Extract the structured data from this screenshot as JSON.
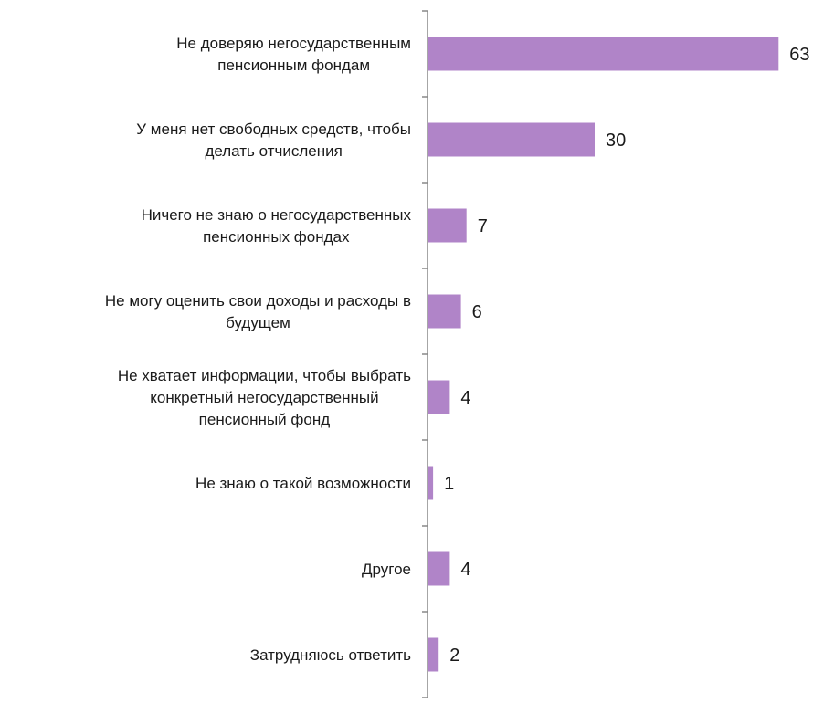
{
  "chart_data": {
    "type": "bar",
    "orientation": "horizontal",
    "categories": [
      [
        "Не доверяю негосударственным",
        "пенсионным фондам"
      ],
      [
        "У меня нет свободных средств, чтобы",
        "делать отчисления"
      ],
      [
        "Ничего не знаю о негосударственных",
        "пенсионных фондах"
      ],
      [
        "Не могу оценить свои доходы и расходы в",
        "будущем"
      ],
      [
        "Не хватает информации, чтобы выбрать",
        "конкретный негосударственный",
        "пенсионный фонд"
      ],
      [
        "Не знаю о такой возможности"
      ],
      [
        "Другое"
      ],
      [
        "Затрудняюсь ответить"
      ]
    ],
    "values": [
      63,
      30,
      7,
      6,
      4,
      1,
      4,
      2
    ],
    "bar_color": "#b084c8",
    "axis_color": "#888888",
    "xlim": [
      0,
      64
    ],
    "grid": false,
    "data_labels": true
  }
}
